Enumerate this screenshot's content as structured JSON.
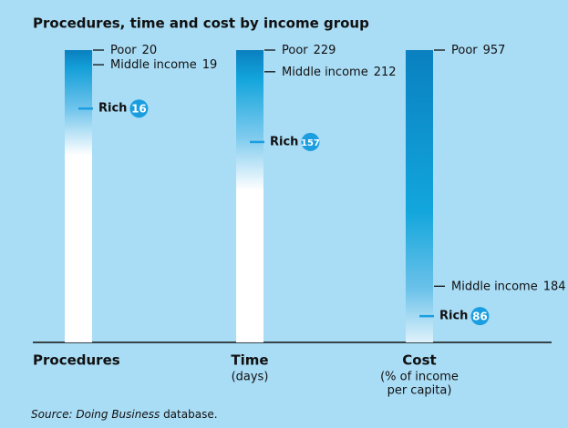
{
  "chart_data": {
    "type": "bar",
    "title": "Procedures, time and cost by income group",
    "categories": [
      "Procedures",
      "Time",
      "Cost"
    ],
    "category_notes": [
      [],
      [
        "(days)"
      ],
      [
        "(% of income",
        "per capita)"
      ]
    ],
    "series": [
      {
        "name": "Poor",
        "color": "#000000",
        "values": [
          20,
          229,
          957
        ]
      },
      {
        "name": "Middle income",
        "color": "#000000",
        "values": [
          19,
          212,
          184
        ]
      },
      {
        "name": "Rich",
        "color": "#1a9ee0",
        "values": [
          16,
          157,
          86
        ]
      }
    ],
    "source": {
      "prefix": "Source:",
      "title": "Doing Business",
      "suffix": "database."
    }
  }
}
